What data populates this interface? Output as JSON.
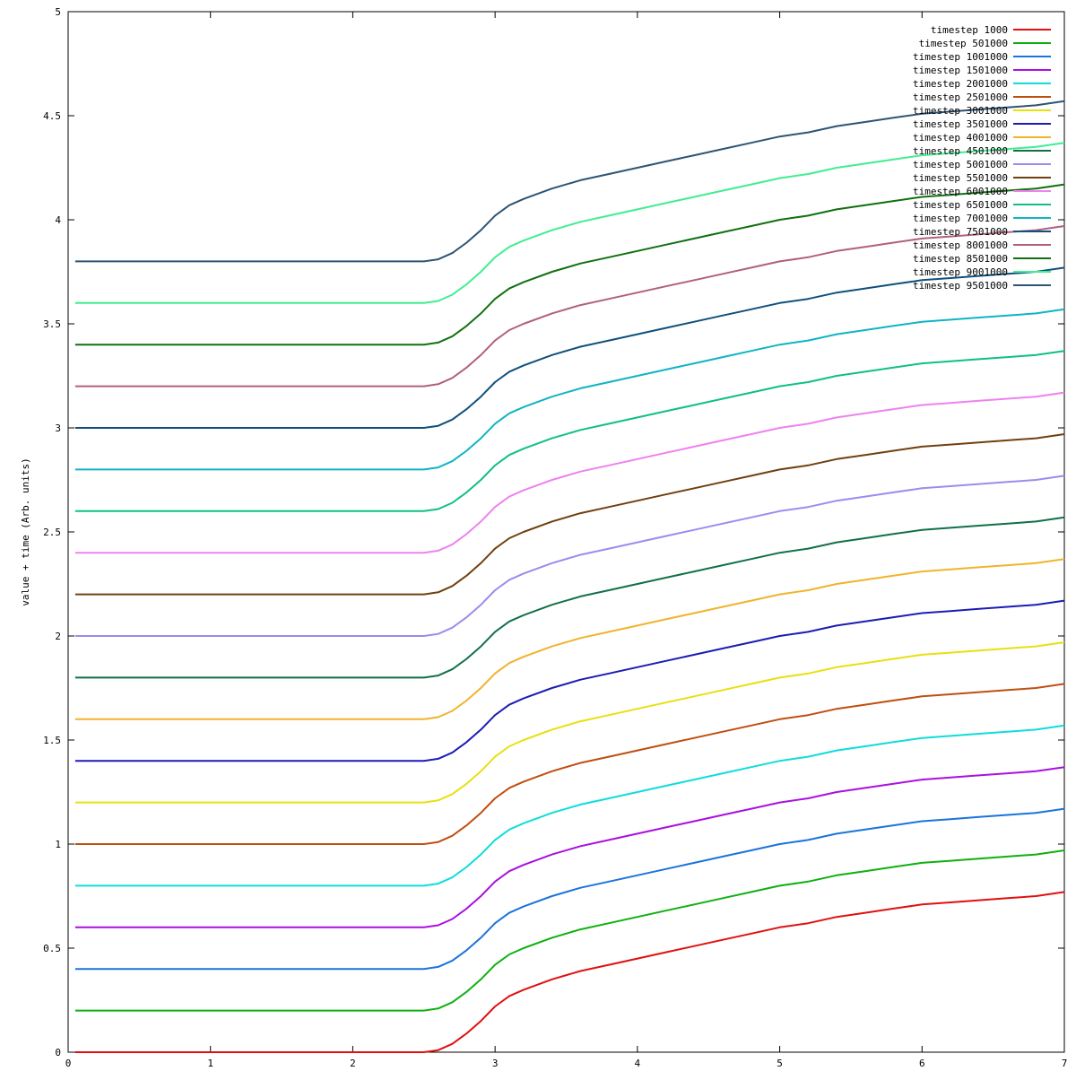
{
  "chart_data": {
    "type": "line",
    "title": "",
    "xlabel": "",
    "ylabel": "value + time (Arb. units)",
    "xlim": [
      0,
      7
    ],
    "ylim": [
      0,
      5
    ],
    "xticks": [
      0,
      1,
      2,
      3,
      4,
      5,
      6,
      7
    ],
    "yticks": [
      0,
      0.5,
      1,
      1.5,
      2,
      2.5,
      3,
      3.5,
      4,
      4.5,
      5
    ],
    "xtick_labels": [
      "0",
      "1",
      "2",
      "3",
      "4",
      "5",
      "6",
      "7"
    ],
    "ytick_labels": [
      "0",
      "0.5",
      "1",
      "1.5",
      "2",
      "2.5",
      "3",
      "3.5",
      "4",
      "4.5",
      "5"
    ],
    "grid": false,
    "legend_position": "top-right",
    "x": [
      0.05,
      2.5,
      2.6,
      2.7,
      2.8,
      2.9,
      3.0,
      3.1,
      3.2,
      3.4,
      3.6,
      3.8,
      4.0,
      4.2,
      4.4,
      4.6,
      4.8,
      5.0,
      5.2,
      5.4,
      5.6,
      5.8,
      6.0,
      6.2,
      6.4,
      6.6,
      6.8,
      7.0
    ],
    "series": [
      {
        "name": "timestep 1000",
        "color": "#e01010",
        "offset": 0.0
      },
      {
        "name": "timestep 501000",
        "color": "#10b010",
        "offset": 0.2
      },
      {
        "name": "timestep 1001000",
        "color": "#1a74db",
        "offset": 0.4
      },
      {
        "name": "timestep 1501000",
        "color": "#aa10e0",
        "offset": 0.6
      },
      {
        "name": "timestep 2001000",
        "color": "#10dcdc",
        "offset": 0.8
      },
      {
        "name": "timestep 2501000",
        "color": "#c04e10",
        "offset": 1.0
      },
      {
        "name": "timestep 3001000",
        "color": "#e8e010",
        "offset": 1.2
      },
      {
        "name": "timestep 3501000",
        "color": "#1c1cb4",
        "offset": 1.4
      },
      {
        "name": "timestep 4001000",
        "color": "#f0b42c",
        "offset": 1.6
      },
      {
        "name": "timestep 4501000",
        "color": "#127048",
        "offset": 1.8
      },
      {
        "name": "timestep 5001000",
        "color": "#9b8cee",
        "offset": 2.0
      },
      {
        "name": "timestep 5501000",
        "color": "#704010",
        "offset": 2.2
      },
      {
        "name": "timestep 6001000",
        "color": "#ee82ee",
        "offset": 2.4
      },
      {
        "name": "timestep 6501000",
        "color": "#10c080",
        "offset": 2.6
      },
      {
        "name": "timestep 7001000",
        "color": "#10b4c4",
        "offset": 2.8
      },
      {
        "name": "timestep 7501000",
        "color": "#10507c",
        "offset": 3.0
      },
      {
        "name": "timestep 8001000",
        "color": "#b06080",
        "offset": 3.2
      },
      {
        "name": "timestep 8501000",
        "color": "#107010",
        "offset": 3.4
      },
      {
        "name": "timestep 9001000",
        "color": "#40ee90",
        "offset": 3.6
      },
      {
        "name": "timestep 9501000",
        "color": "#2e5474",
        "offset": 3.8
      }
    ],
    "profile": [
      0.0,
      0.0,
      0.01,
      0.04,
      0.09,
      0.15,
      0.22,
      0.27,
      0.3,
      0.35,
      0.39,
      0.42,
      0.45,
      0.48,
      0.51,
      0.54,
      0.57,
      0.6,
      0.62,
      0.65,
      0.67,
      0.69,
      0.71,
      0.72,
      0.73,
      0.74,
      0.75,
      0.77
    ]
  }
}
